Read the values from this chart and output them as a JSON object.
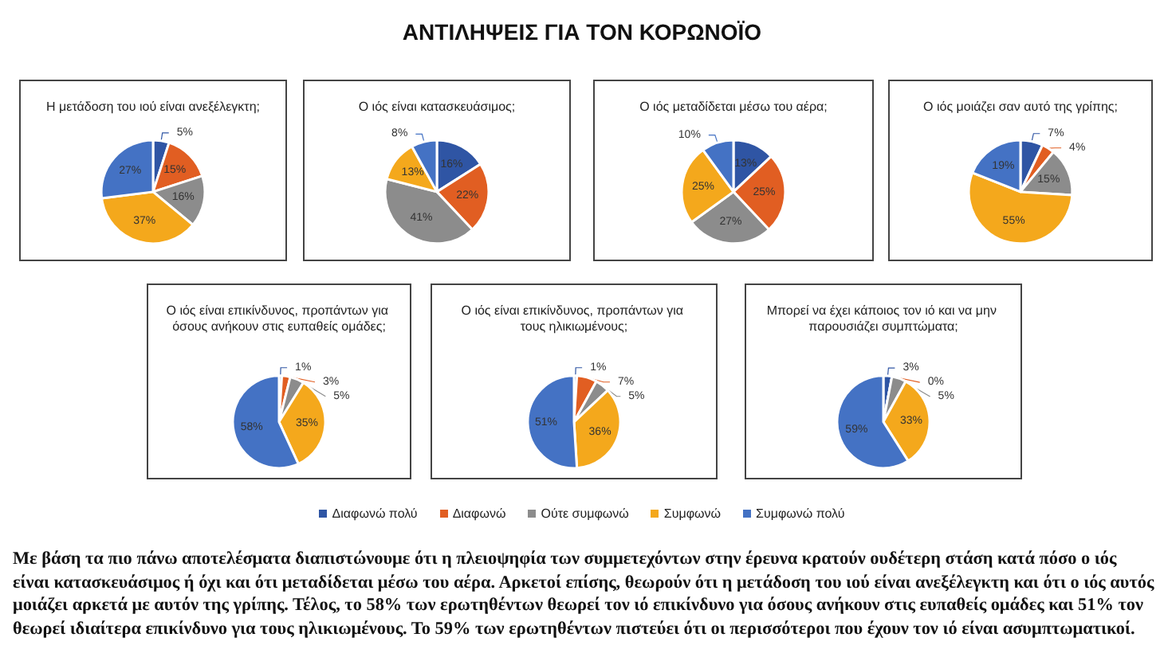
{
  "chart_data": [
    {
      "type": "pie",
      "title": "Η μετάδοση του ιού είναι ανεξέλεγκτη;",
      "categories": [
        "Διαφωνώ πολύ",
        "Διαφωνώ",
        "Ούτε συμφωνώ",
        "Συμφωνώ",
        "Συμφωνώ πολύ"
      ],
      "values": [
        5,
        15,
        16,
        37,
        27
      ],
      "value_labels": [
        "5%",
        "15%",
        "16%",
        "37%",
        "27%"
      ],
      "colors": [
        "#2f55a4",
        "#e15e22",
        "#8c8c8c",
        "#f4a81c",
        "#4472c4"
      ],
      "legend": "bottom"
    },
    {
      "type": "pie",
      "title": "Ο ιός είναι κατασκευάσιμος;",
      "values": [
        16,
        22,
        41,
        13,
        8
      ],
      "value_labels": [
        "16%",
        "22%",
        "41%",
        "13%",
        "8%"
      ],
      "colors": [
        "#2f55a4",
        "#e15e22",
        "#8c8c8c",
        "#f4a81c",
        "#4472c4"
      ]
    },
    {
      "type": "pie",
      "title": "Ο ιός μεταδίδεται μέσω του αέρα;",
      "values": [
        13,
        25,
        27,
        25,
        10
      ],
      "value_labels": [
        "13%",
        "25%",
        "27%",
        "25%",
        "10%"
      ],
      "colors": [
        "#2f55a4",
        "#e15e22",
        "#8c8c8c",
        "#f4a81c",
        "#4472c4"
      ]
    },
    {
      "type": "pie",
      "title": "Ο ιός μοιάζει σαν αυτό της γρίπης;",
      "values": [
        7,
        4,
        15,
        55,
        19
      ],
      "value_labels": [
        "7%",
        "4%",
        "15%",
        "55%",
        "19%"
      ],
      "colors": [
        "#2f55a4",
        "#e15e22",
        "#8c8c8c",
        "#f4a81c",
        "#4472c4"
      ]
    },
    {
      "type": "pie",
      "title": "Ο ιός είναι επικίνδυνος, προπάντων για όσους ανήκουν στις ευπαθείς ομάδες;",
      "values": [
        1,
        3,
        5,
        35,
        58
      ],
      "value_labels": [
        "1%",
        "3%",
        "5%",
        "35%",
        "58%"
      ],
      "colors": [
        "#2f55a4",
        "#e15e22",
        "#8c8c8c",
        "#f4a81c",
        "#4472c4"
      ]
    },
    {
      "type": "pie",
      "title": "Ο ιός είναι επικίνδυνος, προπάντων για τους ηλικιωμένους;",
      "values": [
        1,
        7,
        5,
        36,
        51
      ],
      "value_labels": [
        "1%",
        "7%",
        "5%",
        "36%",
        "51%"
      ],
      "colors": [
        "#2f55a4",
        "#e15e22",
        "#8c8c8c",
        "#f4a81c",
        "#4472c4"
      ]
    },
    {
      "type": "pie",
      "title": "Μπορεί να έχει κάποιος τον ιό και να μην παρουσιάζει συμπτώματα;",
      "values": [
        3,
        0,
        5,
        33,
        59
      ],
      "value_labels": [
        "3%",
        "0%",
        "5%",
        "33%",
        "59%"
      ],
      "colors": [
        "#2f55a4",
        "#e15e22",
        "#8c8c8c",
        "#f4a81c",
        "#4472c4"
      ],
      "annotations": [
        "ΑΝΤΙΛΗΨΕΙΣ ΓΙΑ ΤΟΝ ΚΟΡΩΝΟΪΟ",
        "Με βάση τα πιο πάνω αποτελέσματα διαπιστώνουμε ότι η πλειοψηφία των συμμετεχόντων στην έρευνα κρατούν ουδέτερη στάση κατά πόσο ο ιός είναι κατασκευάσιμος ή όχι και ότι μεταδίδεται μέσω του αέρα. Αρκετοί επίσης, θεωρούν ότι η μετάδοση του ιού είναι ανεξέλεγκτη και ότι ο ιός αυτός μοιάζει αρκετά με αυτόν της γρίπης. Τέλος, το 58% των ερωτηθέντων θεωρεί τον ιό επικίνδυνο για όσους ανήκουν στις ευπαθείς ομάδες και 51% τον θεωρεί ιδιαίτερα επικίνδυνο για τους ηλικιωμένους. Το 59% των ερωτηθέντων πιστεύει ότι οι περισσότεροι που έχουν τον ιό είναι ασυμπτωματικοί."
      ]
    }
  ]
}
